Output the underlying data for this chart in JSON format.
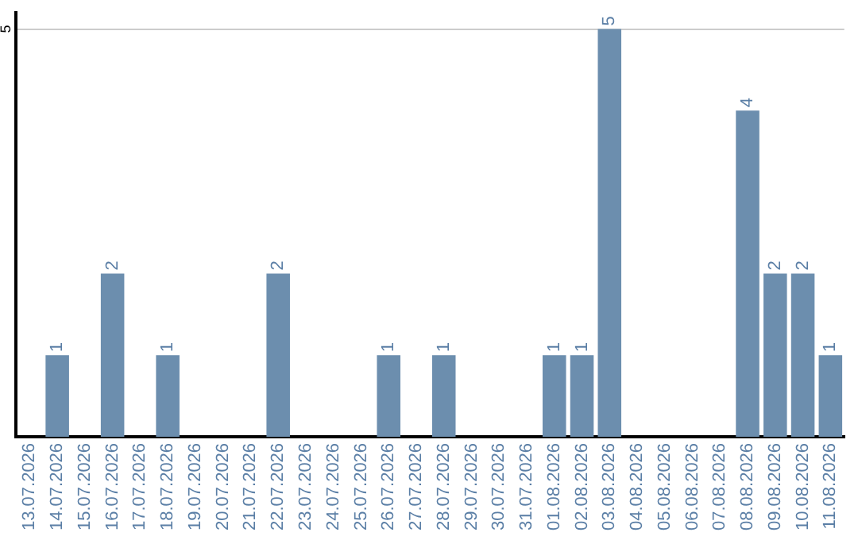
{
  "chart_data": {
    "type": "bar",
    "categories": [
      "13.07.2026",
      "14.07.2026",
      "15.07.2026",
      "16.07.2026",
      "17.07.2026",
      "18.07.2026",
      "19.07.2026",
      "20.07.2026",
      "21.07.2026",
      "22.07.2026",
      "23.07.2026",
      "24.07.2026",
      "25.07.2026",
      "26.07.2026",
      "27.07.2026",
      "28.07.2026",
      "29.07.2026",
      "30.07.2026",
      "31.07.2026",
      "01.08.2026",
      "02.08.2026",
      "03.08.2026",
      "04.08.2026",
      "05.08.2026",
      "06.08.2026",
      "07.08.2026",
      "08.08.2026",
      "09.08.2026",
      "10.08.2026",
      "11.08.2026"
    ],
    "values": [
      0,
      1,
      0,
      2,
      0,
      1,
      0,
      0,
      0,
      2,
      0,
      0,
      0,
      1,
      0,
      1,
      0,
      0,
      0,
      1,
      1,
      5,
      0,
      0,
      0,
      0,
      4,
      2,
      2,
      1
    ],
    "value_labels": [
      null,
      "1",
      null,
      "2",
      null,
      "1",
      null,
      null,
      null,
      "2",
      null,
      null,
      null,
      "1",
      null,
      "1",
      null,
      null,
      null,
      "1",
      "1",
      "5",
      null,
      null,
      null,
      null,
      "4",
      "2",
      "2",
      "1"
    ],
    "color": "#6c8eae",
    "ylim": [
      0,
      5.2
    ],
    "yticks": [
      5
    ],
    "grid": "y",
    "legend": false
  }
}
